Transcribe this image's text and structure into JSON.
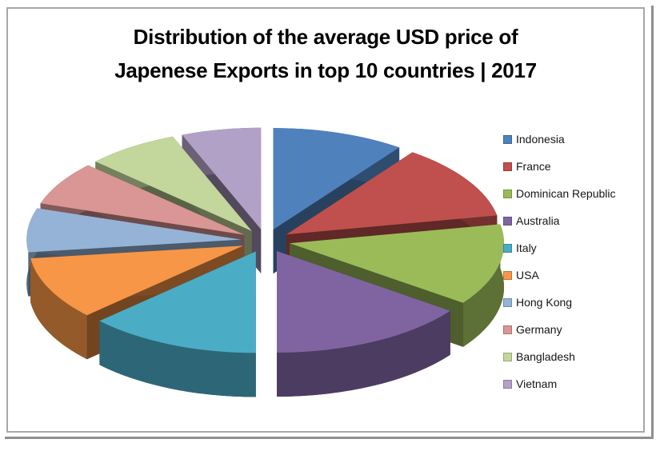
{
  "chart_data": {
    "type": "pie",
    "style": "3d-exploded-pie",
    "title": "Distribution of the average USD price of Japenese Exports in top 10 countries | 2017",
    "title_lines": [
      "Distribution of the average USD price of",
      "Japenese Exports in top 10 countries | 2017"
    ],
    "categories": [
      "Indonesia",
      "France",
      "Dominican Republic",
      "Australia",
      "Italy",
      "USA",
      "Hong Kong",
      "Germany",
      "Bangladesh",
      "Vietnam"
    ],
    "values": [
      10,
      12,
      13,
      15,
      13,
      10,
      7,
      7,
      7,
      6
    ],
    "values_note": "percent share estimated from slice angles; no numeric data labels are shown in the chart",
    "colors": [
      "#4F81BD",
      "#C0504D",
      "#9BBB59",
      "#8064A2",
      "#4BACC6",
      "#F79646",
      "#95B3D7",
      "#D99694",
      "#C3D69B",
      "#B2A1C7"
    ],
    "start_angle_deg": 0,
    "direction": "clockwise",
    "legend_position": "right",
    "data_labels": false,
    "background_color": "#FFFFFF",
    "frame_border_color": "#A8A8A8",
    "title_color": "#000000",
    "legend_text_color": "#151515"
  }
}
